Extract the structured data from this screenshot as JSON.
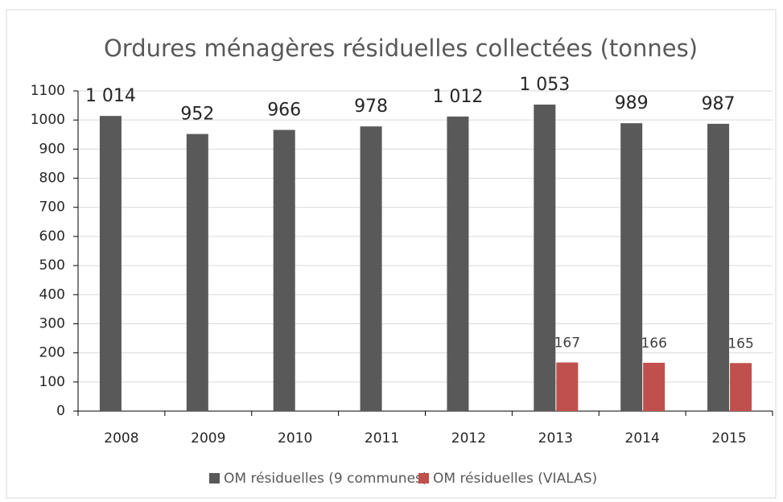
{
  "chart_data": {
    "type": "bar",
    "title": "Ordures ménagères résiduelles collectées (tonnes)",
    "categories": [
      "2008",
      "2009",
      "2010",
      "2011",
      "2012",
      "2013",
      "2014",
      "2015"
    ],
    "series": [
      {
        "name": "OM résiduelles (9 communes)",
        "color": "#595959",
        "values": [
          1014,
          952,
          966,
          978,
          1012,
          1053,
          989,
          987
        ],
        "value_labels": [
          "1 014",
          "952",
          "966",
          "978",
          "1 012",
          "1 053",
          "989",
          "987"
        ]
      },
      {
        "name": "OM résiduelles (VIALAS)",
        "color": "#c0504d",
        "values": [
          null,
          null,
          null,
          null,
          null,
          167,
          166,
          165
        ]
      }
    ],
    "ylim": [
      0,
      1100
    ],
    "yticks": [
      0,
      100,
      200,
      300,
      400,
      500,
      600,
      700,
      800,
      900,
      1000,
      1100
    ],
    "grid": true,
    "legend": "bottom"
  }
}
